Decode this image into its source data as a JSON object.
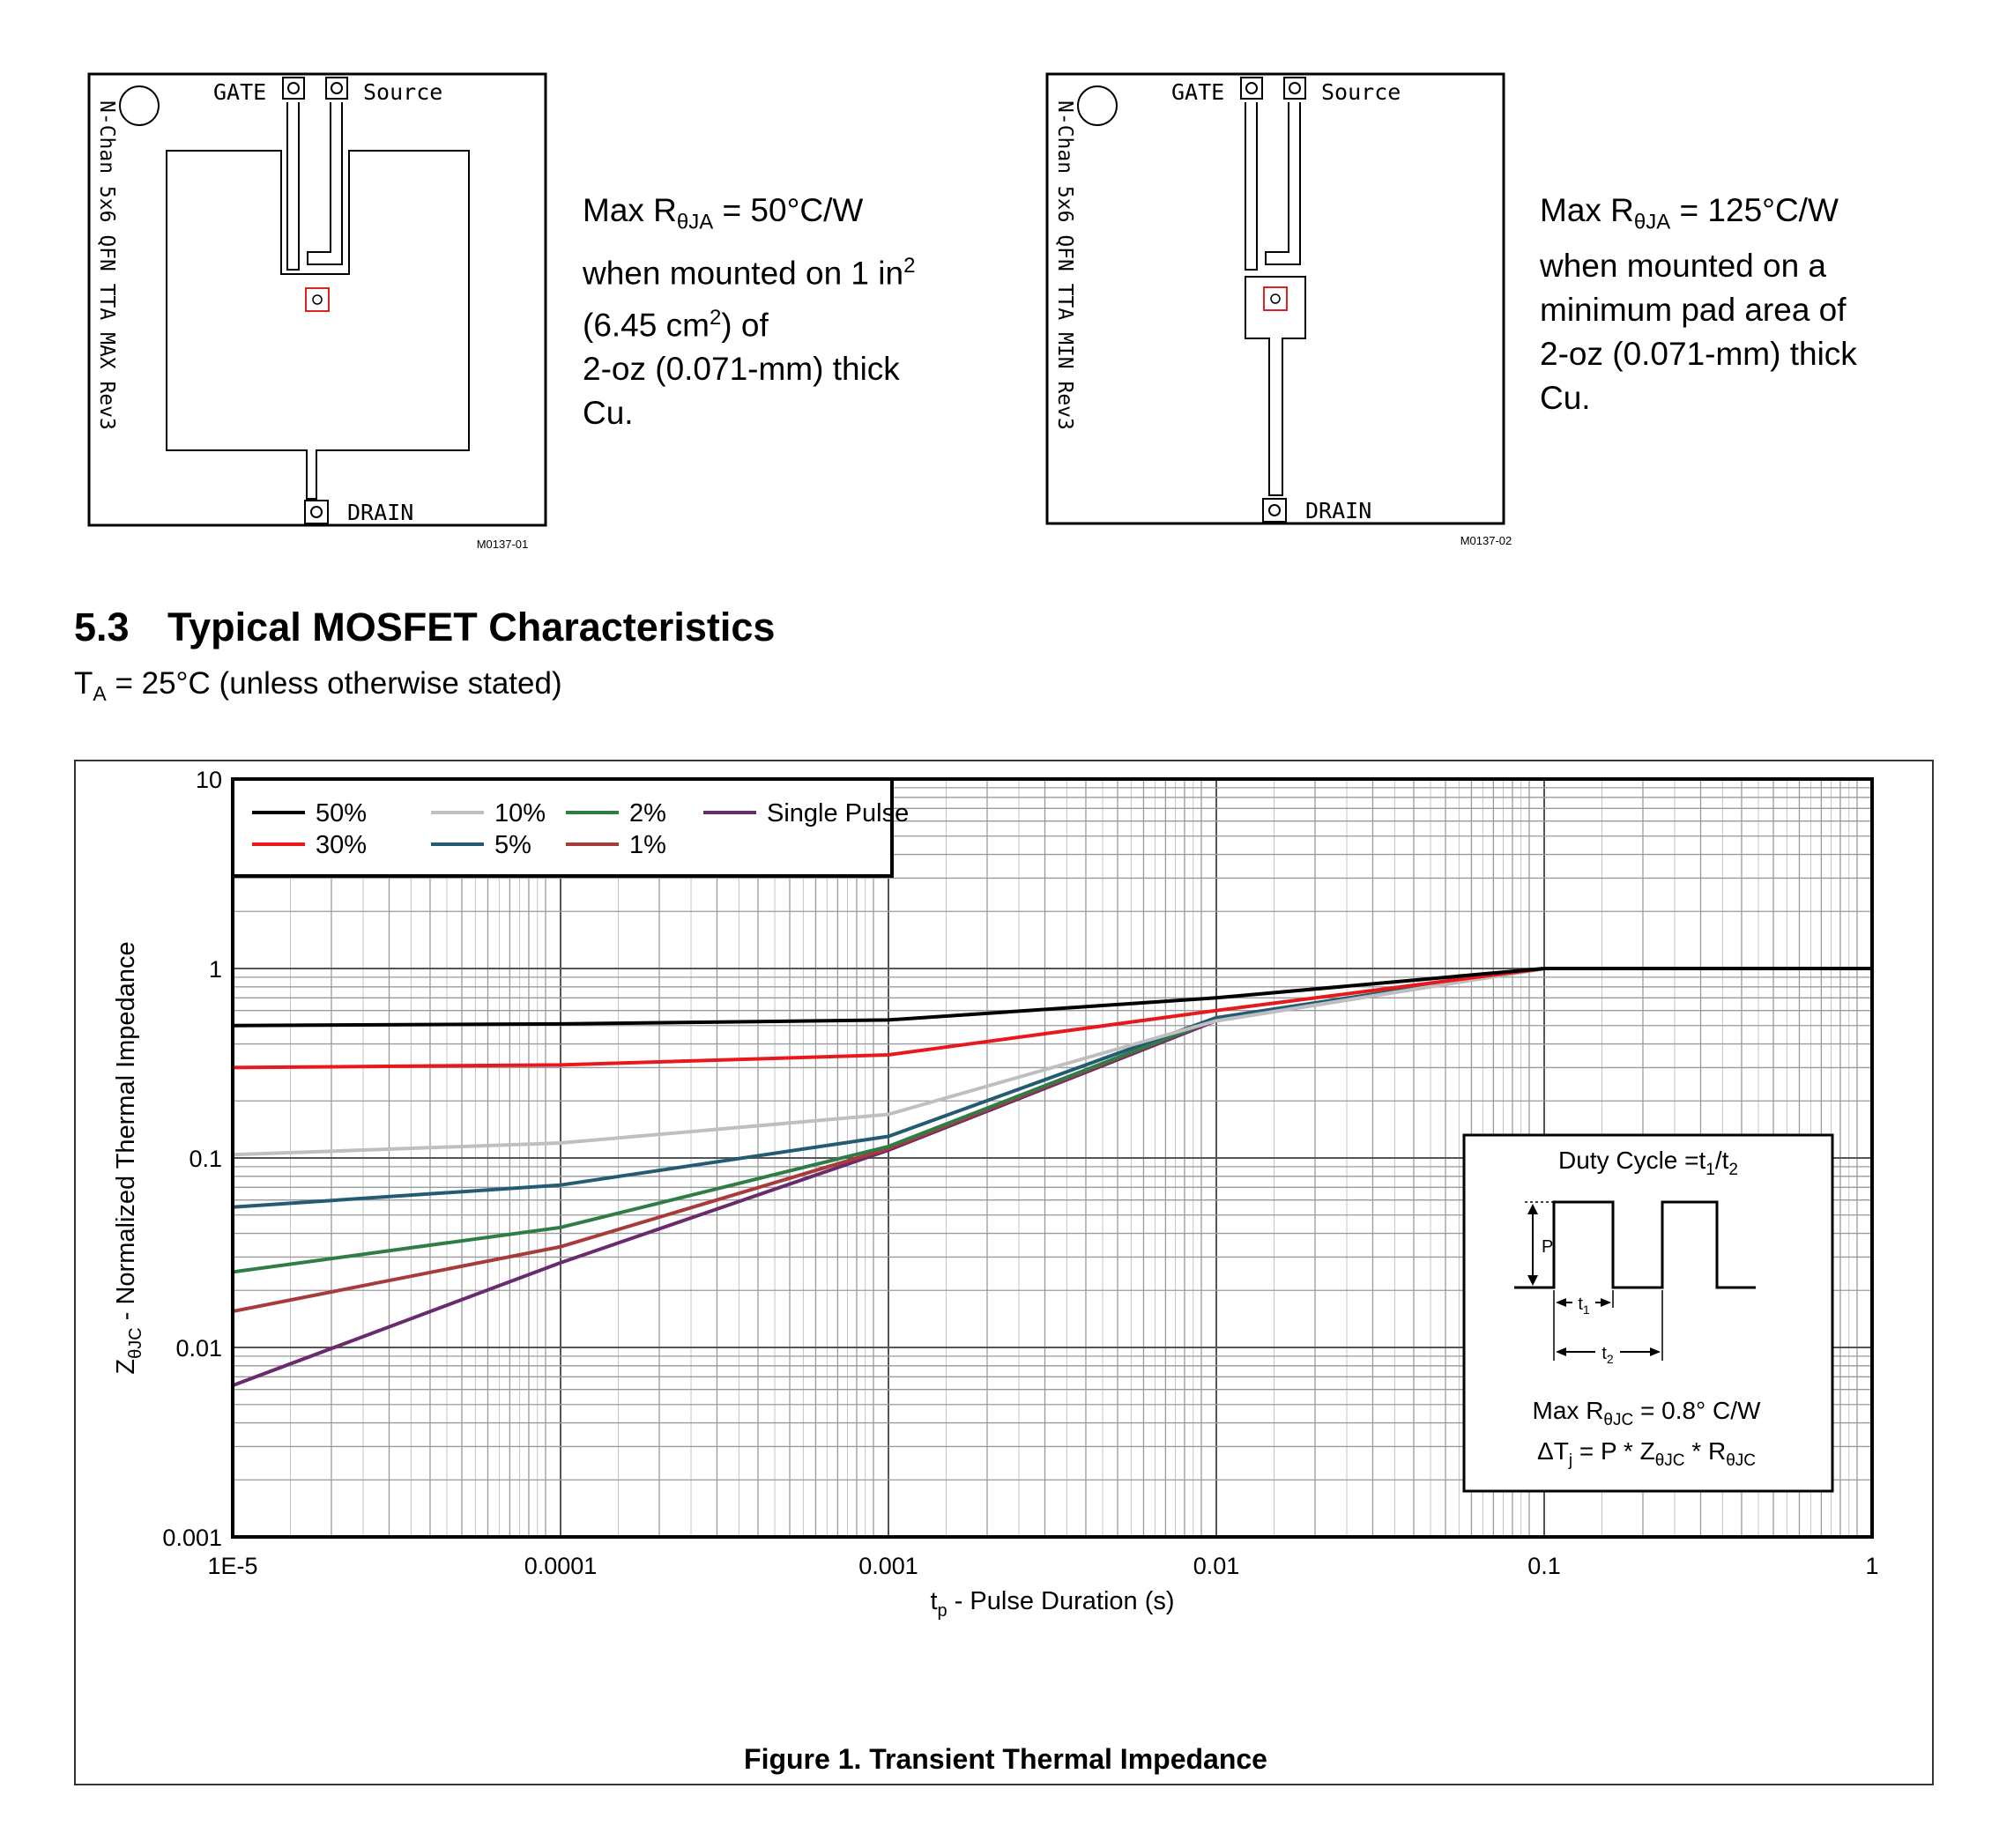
{
  "pcb_left": {
    "gate_label": "GATE",
    "source_label": "Source",
    "drain_label": "DRAIN",
    "side_label": "N-Chan 5x6 QFN TTA MAX Rev3",
    "figure_id": "M0137-01",
    "note_lines": [
      "Max RθJA = 50°C/W",
      "when mounted on 1 in²",
      "(6.45 cm²) of",
      "2-oz (0.071-mm) thick",
      "Cu."
    ]
  },
  "pcb_right": {
    "gate_label": "GATE",
    "source_label": "Source",
    "drain_label": "DRAIN",
    "side_label": "N-Chan 5x6 QFN TTA MIN Rev3",
    "figure_id": "M0137-02",
    "note_lines": [
      "Max RθJA = 125°C/W",
      "when mounted on a",
      "minimum pad area of",
      "2-oz (0.071-mm) thick",
      "Cu."
    ]
  },
  "section": {
    "number": "5.3",
    "title": "Typical MOSFET Characteristics",
    "condition": "TA = 25°C (unless otherwise stated)"
  },
  "figure_caption": "Figure 1. Transient Thermal Impedance",
  "colors": {
    "50%": "#000000",
    "30%": "#e8191c",
    "10%": "#bfbfbf",
    "5%": "#245b73",
    "2%": "#2e7d46",
    "1%": "#a83a3a",
    "Single Pulse": "#6a2b6d"
  },
  "chart_data": {
    "type": "line",
    "title": "",
    "xlabel": "tp - Pulse Duration (s)",
    "ylabel": "ZθJC - Normalized Thermal Impedance",
    "x_scale": "log",
    "y_scale": "log",
    "xlim": [
      1e-05,
      1
    ],
    "ylim": [
      0.001,
      10
    ],
    "x_ticks": [
      "1E-5",
      "0.0001",
      "0.001",
      "0.01",
      "0.1",
      "1"
    ],
    "y_ticks": [
      "0.001",
      "0.01",
      "0.1",
      "1",
      "10"
    ],
    "grid": true,
    "legend_position": "top-left",
    "series": [
      {
        "name": "50%",
        "points": [
          [
            1e-05,
            0.5
          ],
          [
            0.0001,
            0.51
          ],
          [
            0.001,
            0.535
          ],
          [
            0.01,
            0.7
          ],
          [
            0.1,
            1
          ],
          [
            1,
            1
          ]
        ]
      },
      {
        "name": "30%",
        "points": [
          [
            1e-05,
            0.3
          ],
          [
            0.0001,
            0.31
          ],
          [
            0.001,
            0.35
          ],
          [
            0.01,
            0.6
          ],
          [
            0.1,
            1
          ],
          [
            1,
            1
          ]
        ]
      },
      {
        "name": "10%",
        "points": [
          [
            1e-05,
            0.104
          ],
          [
            0.0001,
            0.12
          ],
          [
            0.001,
            0.17
          ],
          [
            0.01,
            0.53
          ],
          [
            0.1,
            1
          ],
          [
            1,
            1
          ]
        ]
      },
      {
        "name": "5%",
        "points": [
          [
            1e-05,
            0.055
          ],
          [
            0.0001,
            0.072
          ],
          [
            0.001,
            0.13
          ],
          [
            0.01,
            0.55
          ],
          [
            0.1,
            1
          ],
          [
            1,
            1
          ]
        ]
      },
      {
        "name": "2%",
        "points": [
          [
            1e-05,
            0.025
          ],
          [
            0.0001,
            0.043
          ],
          [
            0.001,
            0.115
          ],
          [
            0.01,
            0.54
          ],
          [
            0.1,
            1
          ],
          [
            1,
            1
          ]
        ]
      },
      {
        "name": "1%",
        "points": [
          [
            1e-05,
            0.0155
          ],
          [
            0.0001,
            0.034
          ],
          [
            0.001,
            0.112
          ],
          [
            0.01,
            0.54
          ],
          [
            0.1,
            1
          ],
          [
            1,
            1
          ]
        ]
      },
      {
        "name": "Single Pulse",
        "points": [
          [
            1e-05,
            0.0063
          ],
          [
            0.0001,
            0.028
          ],
          [
            0.001,
            0.11
          ],
          [
            0.01,
            0.53
          ],
          [
            0.1,
            1
          ],
          [
            1,
            1
          ]
        ]
      }
    ],
    "inset": {
      "title": "Duty Cycle =t1/t2",
      "p_label": "P",
      "t1_label": "t1",
      "t2_label": "t2",
      "line1": "Max RθJC = 0.8° C/W",
      "line2": "ΔTj = P * ZθJC * RθJC"
    }
  }
}
